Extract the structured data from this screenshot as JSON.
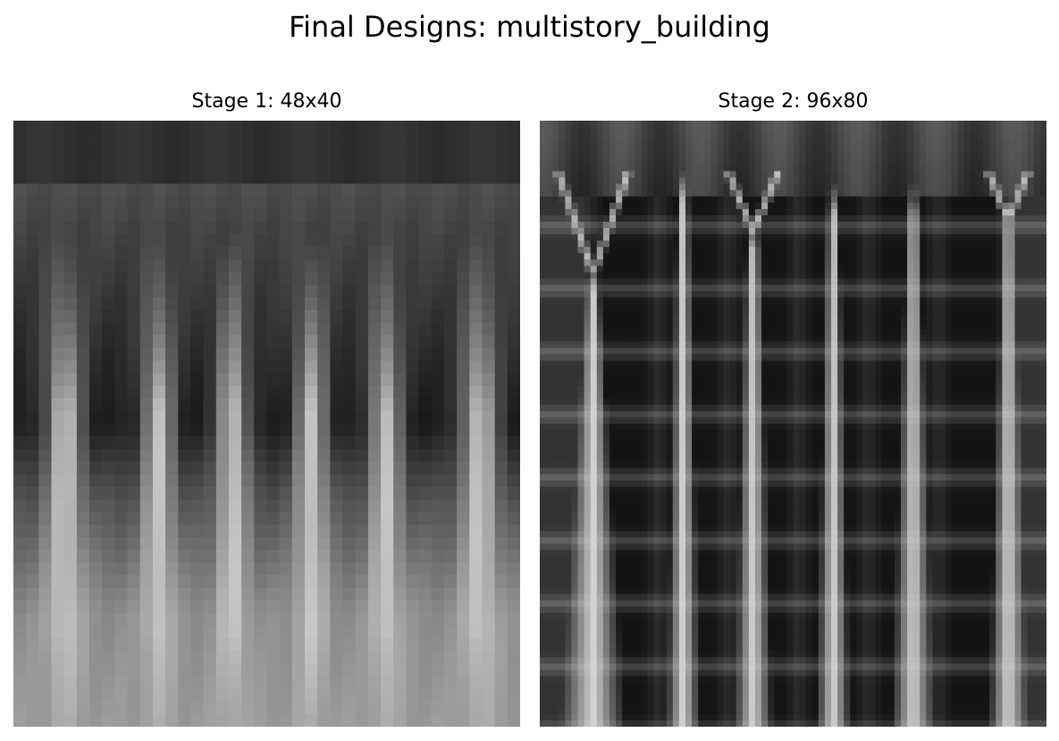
{
  "figure": {
    "title": "Final Designs: multistory_building"
  },
  "panels": [
    {
      "title": "Stage 1: 48x40",
      "image": "blurry grayscale multistory building design with vertical columns",
      "colormap": "gray"
    },
    {
      "title": "Stage 2: 96x80",
      "image": "grayscale multistory building design with branching light columns and dark window cells",
      "colormap": "gray"
    }
  ]
}
